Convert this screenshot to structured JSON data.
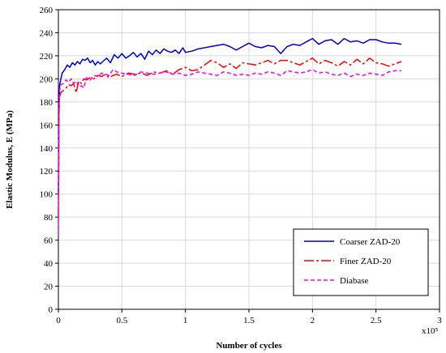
{
  "chart_data": {
    "type": "line",
    "title": "",
    "xlabel": "Number of cycles",
    "ylabel": "Elastic Modulus, E (MPa)",
    "x_multiplier": "x10⁵",
    "xlim": [
      0,
      3
    ],
    "ylim": [
      0,
      260
    ],
    "x_ticks": [
      "0",
      "0.5",
      "1",
      "1.5",
      "2",
      "2.5",
      "3"
    ],
    "y_ticks": [
      "0",
      "20",
      "40",
      "60",
      "80",
      "100",
      "120",
      "140",
      "160",
      "180",
      "200",
      "220",
      "240",
      "260"
    ],
    "grid": true,
    "legend_position": "bottom-right",
    "series": [
      {
        "name": "Coarser ZAD-20",
        "color": "#0000cc",
        "dash": "solid",
        "x": [
          0,
          0.005,
          0.01,
          0.02,
          0.03,
          0.05,
          0.07,
          0.09,
          0.11,
          0.13,
          0.15,
          0.17,
          0.19,
          0.21,
          0.23,
          0.25,
          0.27,
          0.29,
          0.31,
          0.33,
          0.35,
          0.38,
          0.41,
          0.44,
          0.47,
          0.5,
          0.53,
          0.56,
          0.59,
          0.62,
          0.65,
          0.68,
          0.71,
          0.74,
          0.77,
          0.8,
          0.83,
          0.86,
          0.89,
          0.92,
          0.95,
          0.98,
          1.0,
          1.05,
          1.1,
          1.15,
          1.2,
          1.25,
          1.3,
          1.35,
          1.4,
          1.45,
          1.5,
          1.55,
          1.6,
          1.65,
          1.7,
          1.75,
          1.8,
          1.85,
          1.9,
          1.95,
          2.0,
          2.05,
          2.1,
          2.15,
          2.2,
          2.25,
          2.3,
          2.35,
          2.4,
          2.45,
          2.5,
          2.55,
          2.6,
          2.65,
          2.7
        ],
        "values": [
          100,
          180,
          195,
          200,
          205,
          208,
          212,
          210,
          214,
          212,
          215,
          213,
          217,
          216,
          218,
          214,
          216,
          212,
          215,
          213,
          215,
          218,
          214,
          221,
          218,
          222,
          218,
          220,
          223,
          219,
          222,
          217,
          224,
          221,
          225,
          222,
          226,
          224,
          223,
          225,
          222,
          227,
          223,
          224,
          226,
          227,
          228,
          229,
          230,
          228,
          225,
          228,
          231,
          228,
          227,
          229,
          228,
          222,
          228,
          230,
          229,
          232,
          235,
          230,
          233,
          234,
          230,
          235,
          232,
          233,
          231,
          234,
          234,
          232,
          231,
          231,
          230
        ]
      },
      {
        "name": "Finer ZAD-20",
        "color": "#ff0000",
        "dash": "long-dash",
        "x": [
          0,
          0.005,
          0.01,
          0.02,
          0.04,
          0.06,
          0.08,
          0.1,
          0.12,
          0.14,
          0.16,
          0.18,
          0.2,
          0.22,
          0.25,
          0.28,
          0.31,
          0.34,
          0.37,
          0.4,
          0.43,
          0.46,
          0.5,
          0.55,
          0.6,
          0.65,
          0.7,
          0.75,
          0.8,
          0.85,
          0.9,
          0.95,
          1.0,
          1.05,
          1.1,
          1.15,
          1.2,
          1.25,
          1.3,
          1.35,
          1.4,
          1.45,
          1.5,
          1.55,
          1.6,
          1.65,
          1.7,
          1.75,
          1.8,
          1.85,
          1.9,
          1.95,
          2.0,
          2.05,
          2.1,
          2.15,
          2.2,
          2.25,
          2.3,
          2.35,
          2.4,
          2.45,
          2.5,
          2.55,
          2.6,
          2.65,
          2.7
        ],
        "values": [
          80,
          170,
          185,
          188,
          190,
          192,
          195,
          194,
          196,
          188,
          198,
          196,
          200,
          199,
          201,
          200,
          203,
          202,
          204,
          201,
          203,
          204,
          202,
          205,
          204,
          205,
          203,
          206,
          205,
          207,
          204,
          208,
          210,
          207,
          208,
          212,
          216,
          214,
          210,
          213,
          209,
          214,
          213,
          212,
          214,
          216,
          213,
          216,
          216,
          214,
          212,
          215,
          218,
          213,
          216,
          214,
          211,
          215,
          212,
          217,
          213,
          218,
          214,
          213,
          211,
          213,
          215
        ]
      },
      {
        "name": "Diabase",
        "color": "#ff00ff",
        "dash": "short-dash",
        "x": [
          0,
          0.005,
          0.01,
          0.02,
          0.04,
          0.06,
          0.08,
          0.1,
          0.12,
          0.14,
          0.16,
          0.18,
          0.2,
          0.22,
          0.25,
          0.28,
          0.31,
          0.34,
          0.37,
          0.4,
          0.43,
          0.46,
          0.5,
          0.55,
          0.6,
          0.65,
          0.7,
          0.75,
          0.8,
          0.85,
          0.9,
          0.95,
          1.0,
          1.05,
          1.1,
          1.15,
          1.2,
          1.25,
          1.3,
          1.35,
          1.4,
          1.45,
          1.5,
          1.55,
          1.6,
          1.65,
          1.7,
          1.75,
          1.8,
          1.85,
          1.9,
          1.95,
          2.0,
          2.05,
          2.1,
          2.15,
          2.2,
          2.25,
          2.3,
          2.35,
          2.4,
          2.45,
          2.5,
          2.55,
          2.6,
          2.65,
          2.7
        ],
        "values": [
          65,
          175,
          190,
          195,
          196,
          199,
          197,
          200,
          196,
          198,
          193,
          194,
          192,
          201,
          199,
          203,
          202,
          205,
          204,
          203,
          208,
          206,
          205,
          204,
          203,
          206,
          205,
          204,
          205,
          206,
          204,
          205,
          203,
          204,
          206,
          205,
          204,
          203,
          206,
          205,
          203,
          204,
          203,
          205,
          204,
          206,
          205,
          203,
          207,
          206,
          205,
          206,
          208,
          205,
          206,
          204,
          203,
          205,
          202,
          204,
          203,
          205,
          204,
          203,
          206,
          207,
          207
        ]
      }
    ]
  }
}
